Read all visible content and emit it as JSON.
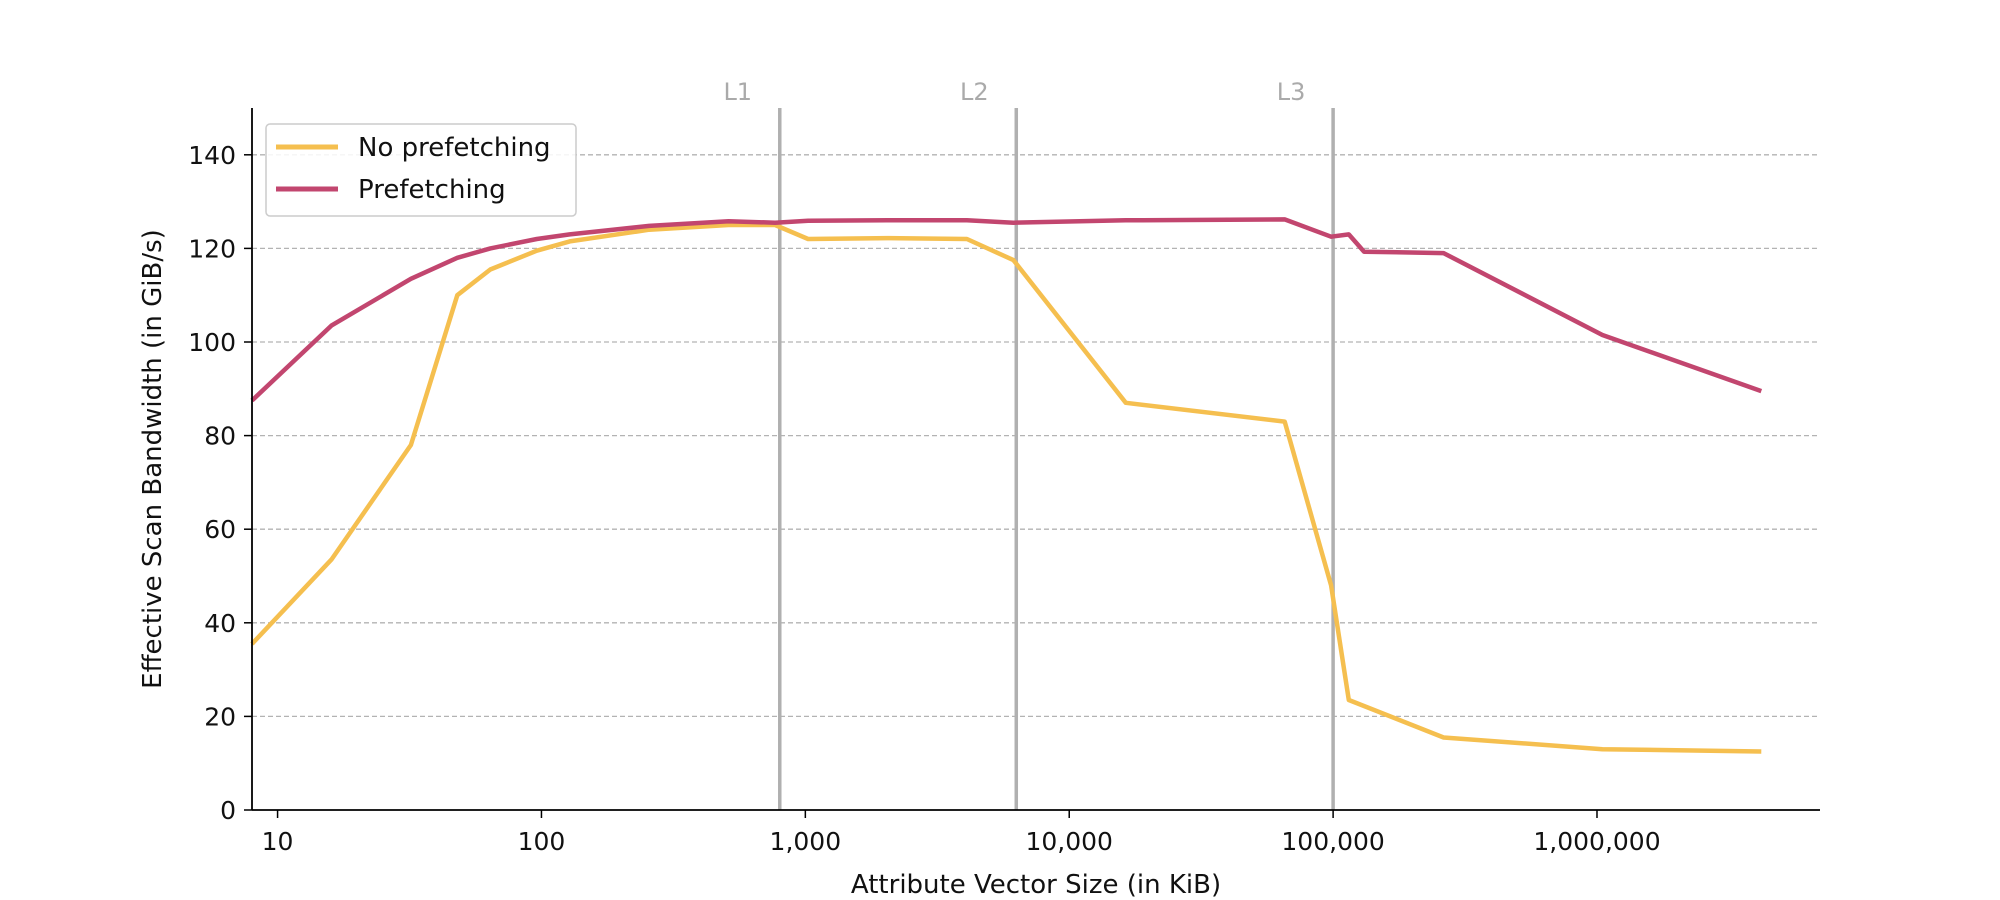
{
  "chart_data": {
    "type": "line",
    "xlabel": "Attribute Vector Size (in KiB)",
    "ylabel": "Effective Scan Bandwidth (in GiB/s)",
    "xscale": "log",
    "xlim": [
      8,
      7000000
    ],
    "ylim": [
      0,
      150
    ],
    "x_ticks": [
      10,
      100,
      1000,
      10000,
      100000,
      1000000
    ],
    "x_tick_labels": [
      "10",
      "100",
      "1,000",
      "10,000",
      "100,000",
      "1,000,000"
    ],
    "y_ticks": [
      0,
      20,
      40,
      60,
      80,
      100,
      120,
      140
    ],
    "y_tick_labels": [
      "0",
      "20",
      "40",
      "60",
      "80",
      "100",
      "120",
      "140"
    ],
    "grid": "horizontal dashed",
    "legend_position": "top-left",
    "cache_lines": [
      {
        "label": "L1",
        "x": 800
      },
      {
        "label": "L2",
        "x": 6300
      },
      {
        "label": "L3",
        "x": 100000
      }
    ],
    "series": [
      {
        "name": "No prefetching",
        "color": "#f5bf4f",
        "x": [
          8,
          16,
          32,
          48,
          64,
          96,
          128,
          256,
          512,
          768,
          1024,
          2048,
          4096,
          6144,
          16384,
          65536,
          98304,
          114688,
          262144,
          1048576,
          4194304
        ],
        "y": [
          35.5,
          53.5,
          78,
          110,
          115.5,
          119.5,
          121.5,
          124,
          125,
          125,
          122,
          122.2,
          122,
          117.5,
          87,
          83,
          48,
          23.5,
          15.5,
          13,
          12.5
        ]
      },
      {
        "name": "Prefetching",
        "color": "#c2466f",
        "x": [
          8,
          16,
          32,
          48,
          64,
          96,
          128,
          256,
          512,
          768,
          1024,
          2048,
          4096,
          6144,
          16384,
          65536,
          98304,
          114688,
          131072,
          262144,
          1048576,
          4194304
        ],
        "y": [
          87.5,
          103.5,
          113.5,
          118,
          120,
          122,
          123,
          124.8,
          125.8,
          125.5,
          125.9,
          126,
          126,
          125.5,
          126,
          126.2,
          122.5,
          123,
          119.3,
          119,
          101.5,
          89.5
        ]
      }
    ]
  }
}
